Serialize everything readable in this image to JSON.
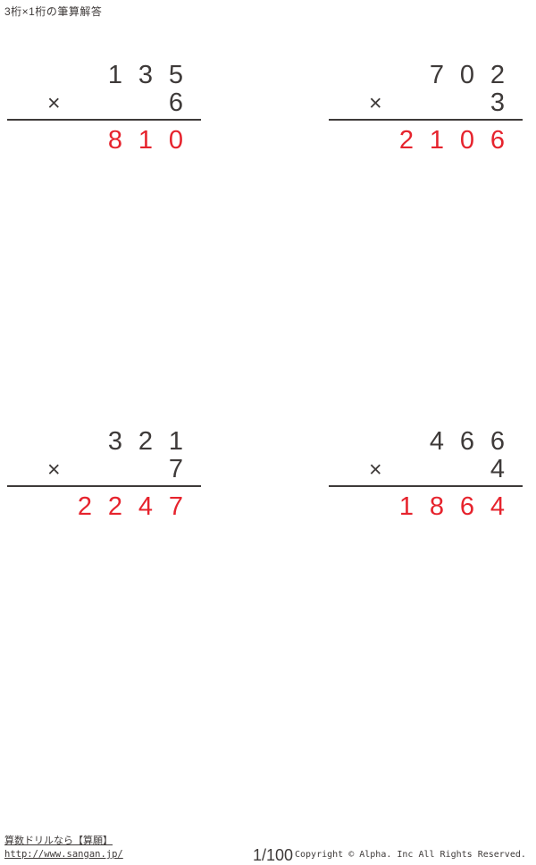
{
  "header": {
    "title": "3桁×1桁の筆算解答"
  },
  "colors": {
    "ink": "#3e3a39",
    "answer_red": "#e6232d"
  },
  "problems": [
    {
      "operator": "×",
      "multiplicand": {
        "thousands": "",
        "hundreds": "1",
        "tens": "3",
        "ones": "5"
      },
      "multiplier": "6",
      "answer": {
        "thousands": "",
        "hundreds": "8",
        "tens": "1",
        "ones": "0"
      }
    },
    {
      "operator": "×",
      "multiplicand": {
        "thousands": "",
        "hundreds": "7",
        "tens": "0",
        "ones": "2"
      },
      "multiplier": "3",
      "answer": {
        "thousands": "2",
        "hundreds": "1",
        "tens": "0",
        "ones": "6"
      }
    },
    {
      "operator": "×",
      "multiplicand": {
        "thousands": "",
        "hundreds": "3",
        "tens": "2",
        "ones": "1"
      },
      "multiplier": "7",
      "answer": {
        "thousands": "2",
        "hundreds": "2",
        "tens": "4",
        "ones": "7"
      }
    },
    {
      "operator": "×",
      "multiplicand": {
        "thousands": "",
        "hundreds": "4",
        "tens": "6",
        "ones": "6"
      },
      "multiplier": "4",
      "answer": {
        "thousands": "1",
        "hundreds": "8",
        "tens": "6",
        "ones": "4"
      }
    }
  ],
  "footer": {
    "site_label": "算数ドリルなら【算願】",
    "site_url": "http://www.sangan.jp/",
    "page_number": "1/100",
    "copyright": "Copyright © Alpha. Inc All Rights Reserved."
  }
}
